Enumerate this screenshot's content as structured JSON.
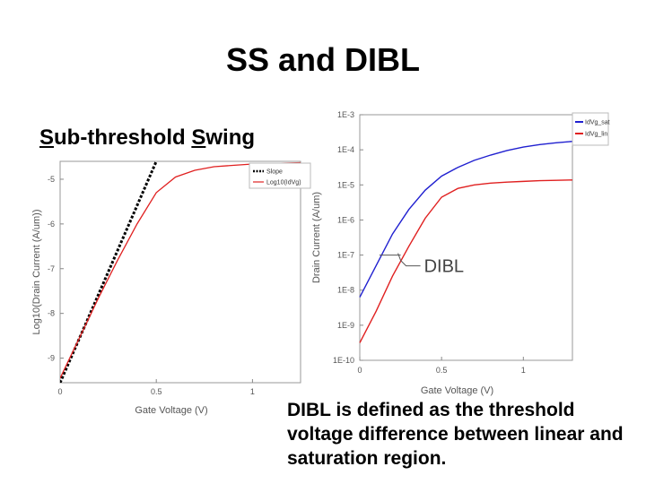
{
  "slide": {
    "title": "SS and DIBL",
    "subtitle_parts": [
      "S",
      "ub-threshold ",
      "S",
      "wing"
    ],
    "caption": "DIBL is defined as the threshold voltage difference between linear and saturation region."
  },
  "chart_data": [
    {
      "type": "line",
      "xlabel": "Gate Voltage (V)",
      "ylabel": "Log10(Drain Current (A/um))",
      "xlim": [
        0,
        1.25
      ],
      "ylim": [
        -9.55,
        -4.6
      ],
      "x_ticks": [
        {
          "v": 0,
          "label": "0"
        },
        {
          "v": 0.5,
          "label": "0.5"
        },
        {
          "v": 1,
          "label": "1"
        }
      ],
      "y_ticks": [
        {
          "v": -5,
          "label": "-5"
        },
        {
          "v": -6,
          "label": "-6"
        },
        {
          "v": -7,
          "label": "-7"
        },
        {
          "v": -8,
          "label": "-8"
        },
        {
          "v": -9,
          "label": "-9"
        }
      ],
      "legend_position": "top-right",
      "series": [
        {
          "name": "Slope",
          "color": "#000000",
          "dashed": true,
          "x": [
            0,
            0.5
          ],
          "y": [
            -9.55,
            -4.6
          ]
        },
        {
          "name": "Log10(IdVg)",
          "color": "#e02020",
          "dashed": false,
          "x": [
            0,
            0.1,
            0.2,
            0.3,
            0.4,
            0.5,
            0.6,
            0.7,
            0.8,
            1.0,
            1.25
          ],
          "y": [
            -9.45,
            -8.55,
            -7.65,
            -6.8,
            -6.0,
            -5.3,
            -4.95,
            -4.8,
            -4.72,
            -4.66,
            -4.63
          ]
        }
      ]
    },
    {
      "type": "line",
      "xlabel": "Gate Voltage (V)",
      "ylabel": "Drain Current (A/um)",
      "log_y": true,
      "xlim": [
        0,
        1.3
      ],
      "ylim_exp": [
        -10,
        -3
      ],
      "x_ticks": [
        {
          "v": 0,
          "label": "0"
        },
        {
          "v": 0.5,
          "label": "0.5"
        },
        {
          "v": 1,
          "label": "1"
        }
      ],
      "y_ticks": [
        {
          "e": -3,
          "label": "1E-3"
        },
        {
          "e": -4,
          "label": "1E-4"
        },
        {
          "e": -5,
          "label": "1E-5"
        },
        {
          "e": -6,
          "label": "1E-6"
        },
        {
          "e": -7,
          "label": "1E-7"
        },
        {
          "e": -8,
          "label": "1E-8"
        },
        {
          "e": -9,
          "label": "1E-9"
        },
        {
          "e": -10,
          "label": "1E-10"
        }
      ],
      "legend_position": "top-right",
      "annotation": {
        "text": "DIBL",
        "y_exp": -7,
        "x_from": 0.12,
        "x_to": 0.25
      },
      "series": [
        {
          "name": "IdVg_sat",
          "color": "#2020d0",
          "x": [
            0,
            0.1,
            0.2,
            0.3,
            0.4,
            0.5,
            0.6,
            0.7,
            0.8,
            0.9,
            1.0,
            1.1,
            1.2,
            1.3
          ],
          "y_exp": [
            -8.2,
            -7.3,
            -6.4,
            -5.7,
            -5.15,
            -4.75,
            -4.5,
            -4.3,
            -4.15,
            -4.02,
            -3.92,
            -3.85,
            -3.8,
            -3.76
          ]
        },
        {
          "name": "IdVg_lin",
          "color": "#e02020",
          "x": [
            0,
            0.1,
            0.2,
            0.3,
            0.4,
            0.5,
            0.6,
            0.7,
            0.8,
            0.9,
            1.0,
            1.1,
            1.2,
            1.3
          ],
          "y_exp": [
            -9.5,
            -8.6,
            -7.6,
            -6.75,
            -5.95,
            -5.35,
            -5.1,
            -5.0,
            -4.95,
            -4.92,
            -4.9,
            -4.88,
            -4.87,
            -4.86
          ]
        }
      ]
    }
  ]
}
